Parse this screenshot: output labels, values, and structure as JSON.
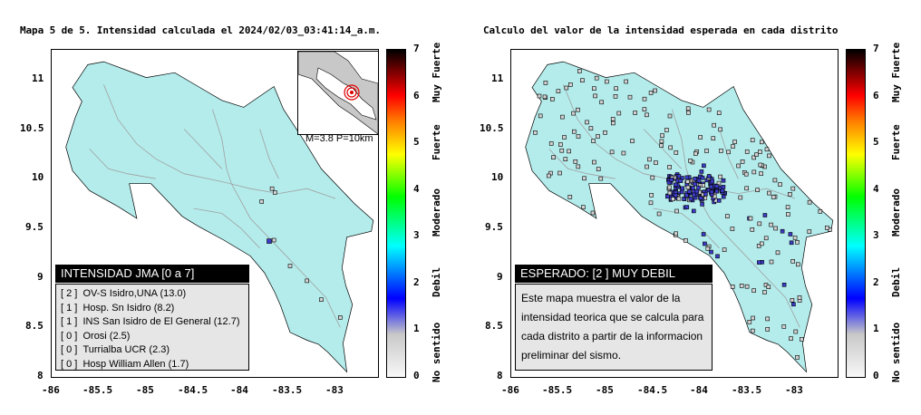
{
  "left": {
    "title": "Mapa 5 de 5. Intensidad calculada el 2024/02/03_03:41:14_a.m.",
    "legend_title": "INTENSIDAD JMA [0 a 7]",
    "legend_rows": [
      {
        "value": "[ 2 ]",
        "label": "OV-S Isidro,UNA (13.0)"
      },
      {
        "value": "[ 1 ]",
        "label": "Hosp. Sn Isidro (8.2)"
      },
      {
        "value": "[ 1 ]",
        "label": "INS San Isidro de El General (12.7)"
      },
      {
        "value": "[ 0 ]",
        "label": "Orosi (2.5)"
      },
      {
        "value": "[ 0 ]",
        "label": "Turrialba UCR (2.3)"
      },
      {
        "value": "[ 0 ]",
        "label": "Hosp William Allen (1.7)"
      }
    ],
    "inset_caption": "M=3.8 P=10km"
  },
  "right": {
    "title": "Calculo del valor de la intensidad esperada en cada distrito",
    "legend_title": "ESPERADO: [2 ] MUY DEBIL",
    "note": "Este mapa muestra el valor de la intensidad teorica que se calcula para cada distrito a partir de la informacion preliminar del sismo."
  },
  "axes": {
    "x_ticks": [
      "-86",
      "-85.5",
      "-85",
      "-84.5",
      "-84",
      "-83.5",
      "-83"
    ],
    "y_ticks": [
      "11",
      "10.5",
      "10",
      "9.5",
      "9",
      "8.5",
      "8"
    ]
  },
  "colorbar": {
    "numbers": [
      "7",
      "6",
      "5",
      "4",
      "3",
      "2",
      "1",
      "0"
    ],
    "labels": [
      "Muy Fuerte",
      "Fuerte",
      "Moderado",
      "Debil",
      "No sentido"
    ]
  },
  "colors": {
    "land": "#b4ecec",
    "road": "#a0a0a0",
    "weak_station": "#3c3cc8",
    "zero_station": "#d2d2d2"
  }
}
